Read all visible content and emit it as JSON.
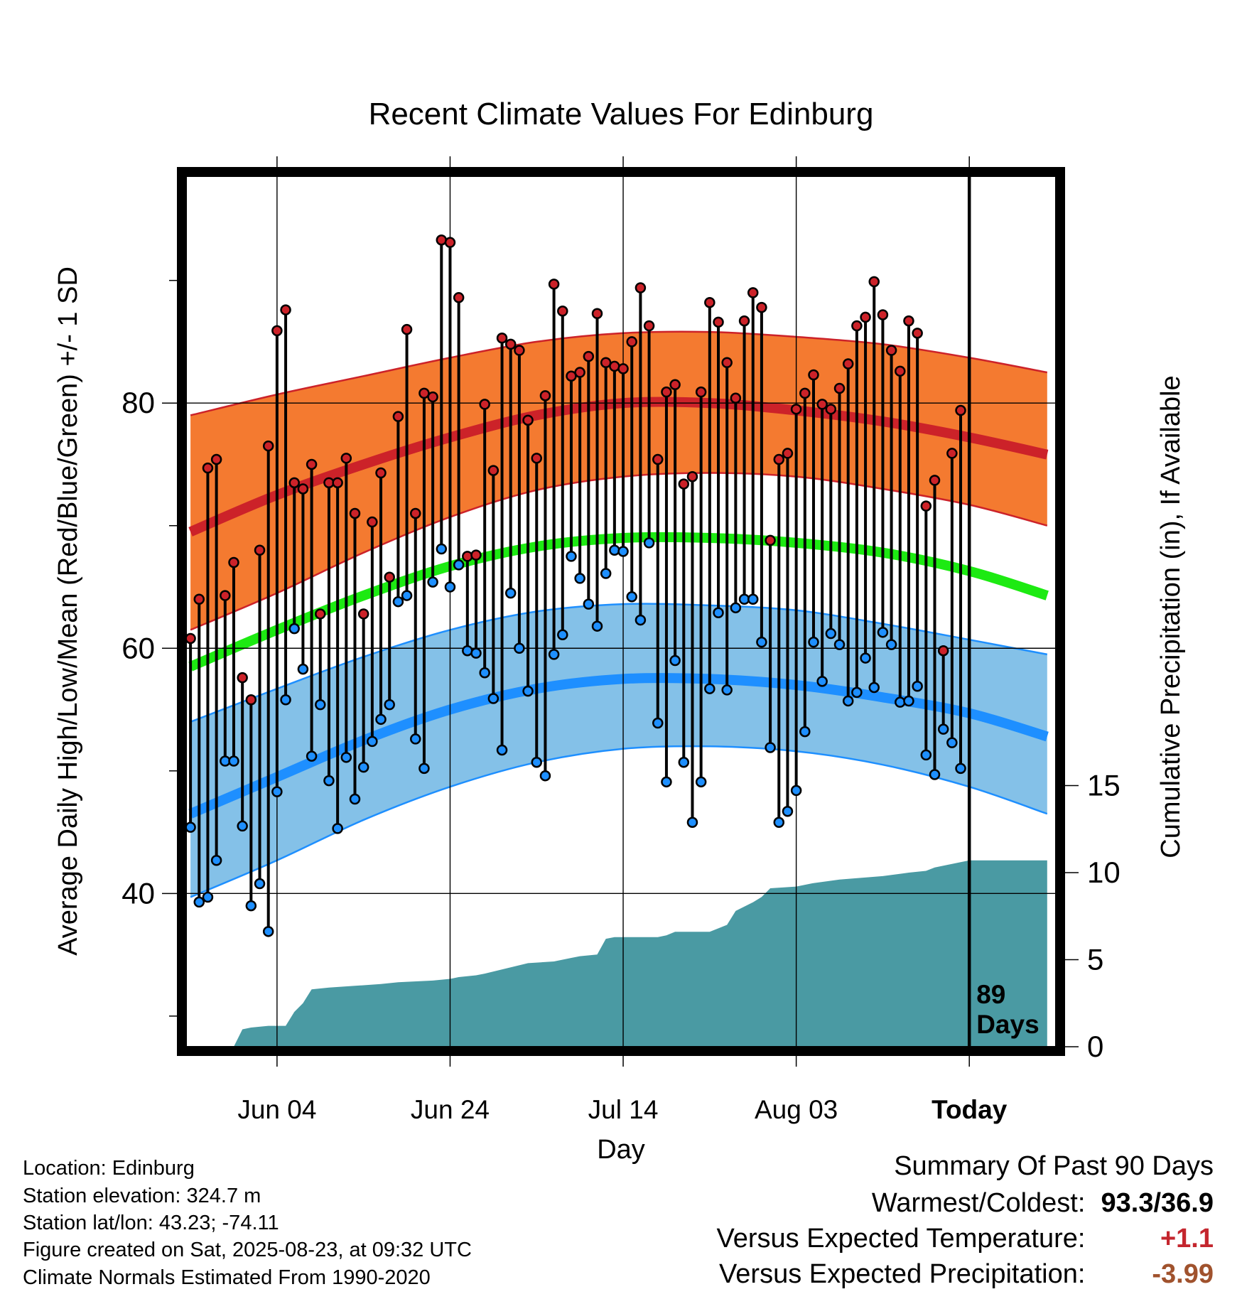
{
  "chart_data": {
    "type": "line",
    "title": "Recent Climate Values For Edinburg",
    "xlabel": "Day",
    "ylabel": "Average Daily High/Low/Mean (Red/Blue/Green) +/- 1 SD",
    "y2label": "Cumulative Precipitation (in), If Available",
    "x_tick_labels": [
      "Jun 04",
      "Jun 24",
      "Jul 14",
      "Aug 03",
      "Today"
    ],
    "y_ticks": [
      40,
      60,
      80
    ],
    "y2_ticks": [
      0,
      5,
      10,
      15
    ],
    "ylim": [
      27.5,
      98.5
    ],
    "y2lim": [
      0,
      50
    ],
    "xlim": [
      -10.5,
      90
    ],
    "days_label": "89\nDays",
    "grid": true,
    "colors": {
      "high": "#cc2229",
      "high_band": "#f47a30",
      "low": "#1e8fff",
      "low_band": "#84c1e8",
      "mean": "#1dea12",
      "precip": "#4a9aa3"
    },
    "normals": {
      "day": [
        -10,
        0,
        10,
        20,
        30,
        40,
        50,
        60,
        70,
        80,
        89
      ],
      "high_mean": [
        69.5,
        72.5,
        75.0,
        77.2,
        79.0,
        80.0,
        80.0,
        79.4,
        78.5,
        77.2,
        75.8
      ],
      "high_upper": [
        79.0,
        80.7,
        82.2,
        83.7,
        85.0,
        85.7,
        85.8,
        85.4,
        84.8,
        83.7,
        82.5
      ],
      "high_lower": [
        61.5,
        64.5,
        67.8,
        70.7,
        72.9,
        74.0,
        74.3,
        74.0,
        73.0,
        71.7,
        70.0
      ],
      "mean": [
        58.5,
        61.5,
        64.3,
        66.7,
        68.3,
        69.0,
        69.0,
        68.6,
        67.8,
        66.3,
        64.3
      ],
      "low_mean": [
        46.5,
        49.5,
        52.5,
        55.0,
        56.7,
        57.5,
        57.5,
        57.0,
        56.0,
        54.7,
        52.8
      ],
      "low_upper": [
        54.0,
        56.7,
        59.3,
        61.5,
        63.0,
        63.6,
        63.5,
        63.1,
        62.0,
        60.7,
        59.5
      ],
      "low_lower": [
        39.7,
        42.7,
        46.0,
        48.7,
        50.7,
        51.8,
        52.0,
        51.6,
        50.5,
        48.7,
        46.5
      ]
    },
    "series": [
      {
        "name": "High",
        "x": [
          -10,
          -9,
          -8,
          -7,
          -6,
          -5,
          -4,
          -3,
          -2,
          -1,
          0,
          1,
          2,
          3,
          4,
          5,
          6,
          7,
          8,
          9,
          10,
          11,
          12,
          13,
          14,
          15,
          16,
          17,
          18,
          19,
          20,
          21,
          22,
          23,
          24,
          25,
          26,
          27,
          28,
          29,
          30,
          31,
          32,
          33,
          34,
          35,
          36,
          37,
          38,
          39,
          40,
          41,
          42,
          43,
          44,
          45,
          46,
          47,
          48,
          49,
          50,
          51,
          52,
          53,
          54,
          55,
          56,
          57,
          58,
          59,
          60,
          61,
          62,
          63,
          64,
          65,
          66,
          67,
          68,
          69,
          70,
          71,
          72,
          73,
          74,
          75,
          76,
          77,
          78,
          79
        ],
        "values": [
          60.8,
          64.0,
          74.7,
          75.4,
          64.3,
          67.0,
          57.6,
          55.8,
          68.0,
          76.5,
          85.9,
          87.6,
          73.5,
          73.0,
          75.0,
          62.8,
          73.5,
          73.5,
          75.5,
          71.0,
          62.8,
          70.3,
          74.3,
          65.8,
          78.9,
          86.0,
          71.0,
          80.8,
          80.5,
          93.3,
          93.1,
          88.6,
          67.5,
          67.6,
          79.9,
          74.5,
          85.3,
          84.8,
          84.3,
          78.6,
          75.5,
          80.6,
          89.7,
          87.5,
          82.2,
          82.5,
          83.8,
          87.3,
          83.3,
          83.0,
          82.8,
          85.0,
          89.4,
          86.3,
          75.4,
          80.9,
          81.5,
          73.4,
          74.0,
          80.9,
          88.2,
          86.6,
          83.3,
          80.4,
          86.7,
          89.0,
          87.8,
          68.8,
          75.4,
          75.9,
          79.5,
          80.8,
          82.3,
          79.9,
          79.5,
          81.2,
          83.2,
          86.3,
          87.0,
          89.9,
          87.2,
          84.3,
          82.6,
          86.7,
          85.7,
          71.6,
          73.7,
          59.8,
          75.9,
          79.4
        ]
      },
      {
        "name": "Low",
        "x": [
          -10,
          -9,
          -8,
          -7,
          -6,
          -5,
          -4,
          -3,
          -2,
          -1,
          0,
          1,
          2,
          3,
          4,
          5,
          6,
          7,
          8,
          9,
          10,
          11,
          12,
          13,
          14,
          15,
          16,
          17,
          18,
          19,
          20,
          21,
          22,
          23,
          24,
          25,
          26,
          27,
          28,
          29,
          30,
          31,
          32,
          33,
          34,
          35,
          36,
          37,
          38,
          39,
          40,
          41,
          42,
          43,
          44,
          45,
          46,
          47,
          48,
          49,
          50,
          51,
          52,
          53,
          54,
          55,
          56,
          57,
          58,
          59,
          60,
          61,
          62,
          63,
          64,
          65,
          66,
          67,
          68,
          69,
          70,
          71,
          72,
          73,
          74,
          75,
          76,
          77,
          78,
          79
        ],
        "values": [
          45.4,
          39.3,
          39.7,
          42.7,
          50.8,
          50.8,
          45.5,
          39.0,
          40.8,
          36.9,
          48.3,
          55.8,
          61.6,
          58.3,
          51.2,
          55.4,
          49.2,
          45.3,
          51.1,
          47.7,
          50.3,
          52.4,
          54.2,
          55.4,
          63.8,
          64.3,
          52.6,
          50.2,
          65.4,
          68.1,
          65.0,
          66.8,
          59.8,
          59.6,
          58.0,
          55.9,
          51.7,
          64.5,
          60.0,
          56.5,
          50.7,
          49.6,
          59.5,
          61.1,
          67.5,
          65.7,
          63.6,
          61.8,
          66.1,
          68.0,
          67.9,
          64.2,
          62.3,
          68.6,
          53.9,
          49.1,
          59.0,
          50.7,
          45.8,
          49.1,
          56.7,
          62.9,
          56.6,
          63.3,
          64.0,
          64.0,
          60.5,
          51.9,
          45.8,
          46.7,
          48.4,
          53.2,
          60.5,
          57.3,
          61.2,
          60.3,
          55.7,
          56.4,
          59.2,
          56.8,
          61.3,
          60.3,
          55.6,
          55.7,
          56.9,
          51.3,
          49.7,
          53.4,
          52.3,
          50.2
        ]
      },
      {
        "name": "Precipitation",
        "x": [
          -10,
          -5,
          -4,
          -3,
          -1,
          1,
          2,
          3,
          4,
          6,
          9,
          12,
          14,
          18,
          20,
          21,
          23,
          24,
          29,
          32,
          33,
          34,
          35,
          37,
          38,
          39,
          44,
          45,
          46,
          50,
          52,
          53,
          55,
          56,
          57,
          60,
          62,
          65,
          70,
          73,
          75,
          76,
          79,
          80,
          89
        ],
        "values": [
          0,
          0,
          1.0,
          1.1,
          1.2,
          1.2,
          2.0,
          2.5,
          3.3,
          3.4,
          3.5,
          3.6,
          3.7,
          3.8,
          3.9,
          4.0,
          4.1,
          4.2,
          4.8,
          4.9,
          5.0,
          5.1,
          5.2,
          5.3,
          6.2,
          6.3,
          6.3,
          6.4,
          6.6,
          6.6,
          7.0,
          7.8,
          8.3,
          8.6,
          9.1,
          9.2,
          9.4,
          9.6,
          9.8,
          10.0,
          10.1,
          10.3,
          10.6,
          10.7,
          10.7
        ]
      }
    ]
  },
  "info": {
    "location": "Location: Edinburg",
    "elevation": "Station elevation: 324.7 m",
    "latlon": "Station lat/lon: 43.23; -74.11",
    "created": "Figure created on Sat, 2025-08-23, at 09:32 UTC",
    "normals": "Climate Normals Estimated From 1990-2020"
  },
  "summary": {
    "title": "Summary Of Past 90 Days",
    "warm_cold_label": "Warmest/Coldest:",
    "warm_cold_value": "93.3/36.9",
    "temp_label": "Versus Expected Temperature:",
    "temp_value": "+1.1",
    "precip_label": "Versus Expected Precipitation:",
    "precip_value": "-3.99"
  }
}
